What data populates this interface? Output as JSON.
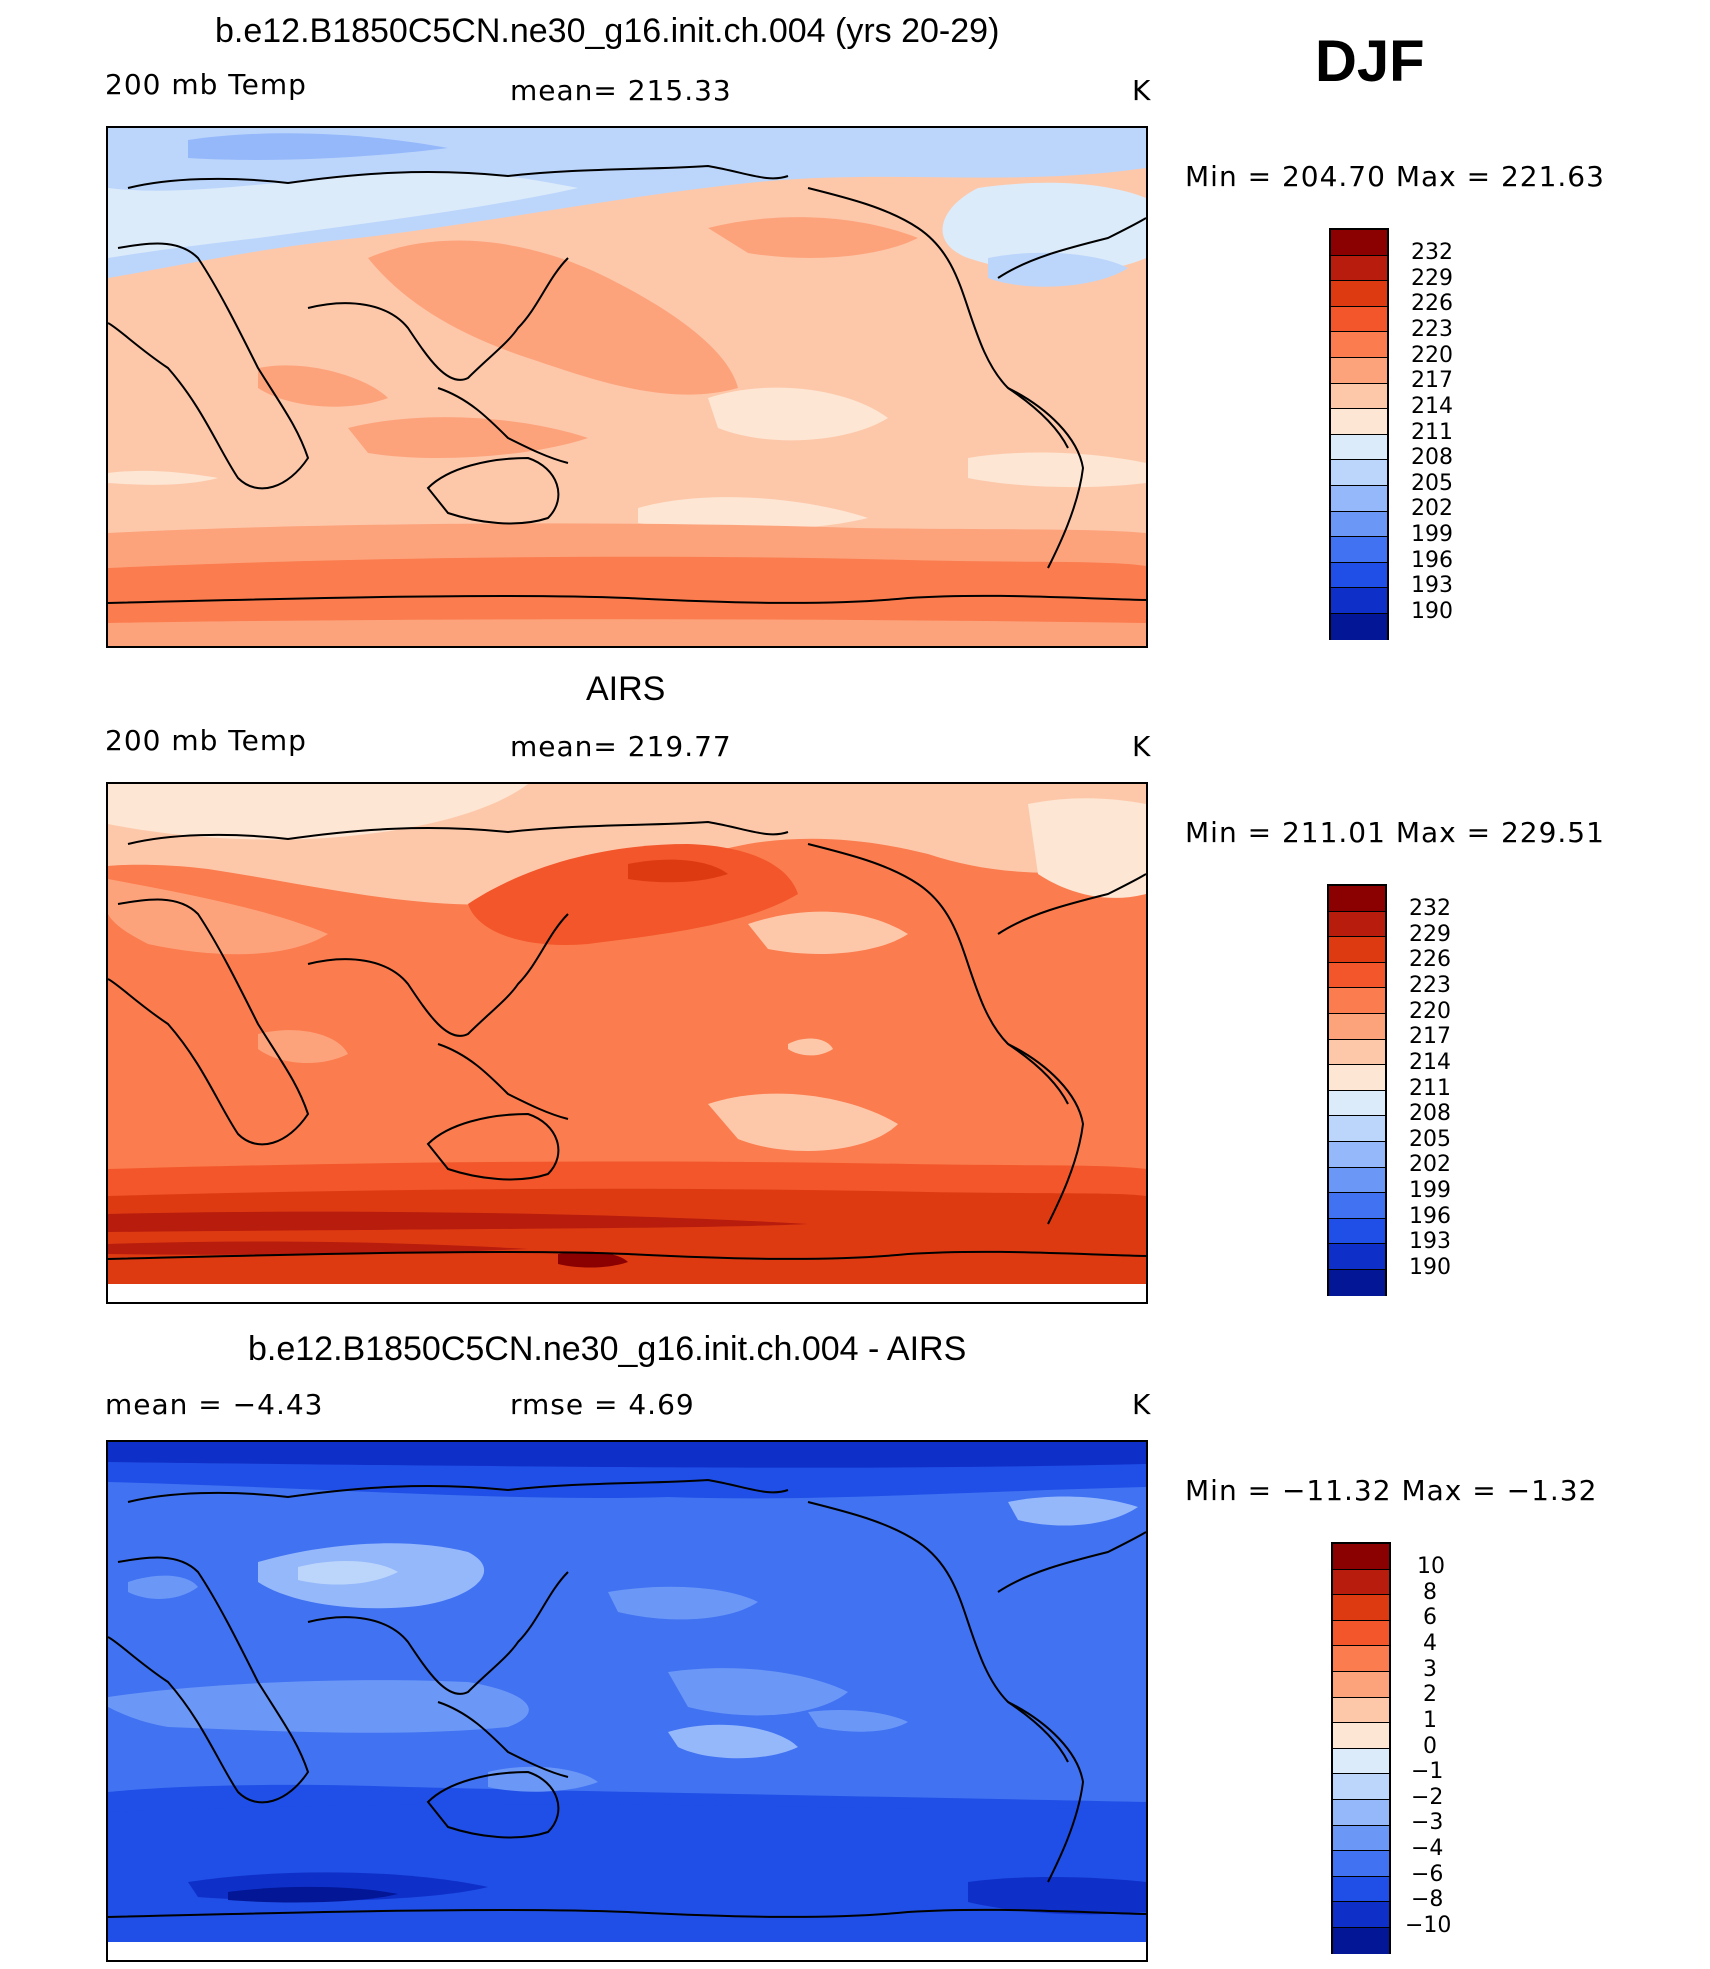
{
  "season": "DJF",
  "panels": [
    {
      "id": "model",
      "title": "b.e12.B1850C5CN.ne30_g16.init.ch.004 (yrs 20-29)",
      "left_label": "200 mb Temp",
      "center_label": "mean= 215.33",
      "units": "K",
      "minmax": "Min = 204.70 Max = 221.63",
      "colorbar": {
        "labels": [
          "232",
          "229",
          "226",
          "223",
          "220",
          "217",
          "214",
          "211",
          "208",
          "205",
          "202",
          "199",
          "196",
          "193",
          "190"
        ],
        "colors": [
          "#8b0000",
          "#b71c0c",
          "#de3a12",
          "#f2562a",
          "#fb7c4e",
          "#fda37c",
          "#fdc8aa",
          "#fde6d3",
          "#dcebfa",
          "#bcd6fb",
          "#95b8fb",
          "#6b97f7",
          "#4072f2",
          "#1f4fe6",
          "#0f2fc9",
          "#031796"
        ]
      },
      "base_color": "#fdc8aa"
    },
    {
      "id": "obs",
      "title": "AIRS",
      "left_label": "200 mb Temp",
      "center_label": "mean= 219.77",
      "units": "K",
      "minmax": "Min = 211.01 Max = 229.51",
      "colorbar": {
        "labels": [
          "232",
          "229",
          "226",
          "223",
          "220",
          "217",
          "214",
          "211",
          "208",
          "205",
          "202",
          "199",
          "196",
          "193",
          "190"
        ],
        "colors": [
          "#8b0000",
          "#b71c0c",
          "#de3a12",
          "#f2562a",
          "#fb7c4e",
          "#fda37c",
          "#fdc8aa",
          "#fde6d3",
          "#dcebfa",
          "#bcd6fb",
          "#95b8fb",
          "#6b97f7",
          "#4072f2",
          "#1f4fe6",
          "#0f2fc9",
          "#031796"
        ]
      },
      "base_color": "#fb7c4e"
    },
    {
      "id": "diff",
      "title": "b.e12.B1850C5CN.ne30_g16.init.ch.004 - AIRS",
      "left_label": "mean =  −4.43",
      "center_label": "rmse =   4.69",
      "units": "K",
      "minmax": "Min = −11.32 Max =  −1.32",
      "colorbar": {
        "labels": [
          "10",
          "8",
          "6",
          "4",
          "3",
          "2",
          "1",
          "0",
          "−1",
          "−2",
          "−3",
          "−4",
          "−6",
          "−8",
          "−10"
        ],
        "colors": [
          "#8b0000",
          "#b71c0c",
          "#de3a12",
          "#f2562a",
          "#fb7c4e",
          "#fda37c",
          "#fdc8aa",
          "#fde6d3",
          "#dcebfa",
          "#bcd6fb",
          "#95b8fb",
          "#6b97f7",
          "#4072f2",
          "#1f4fe6",
          "#0f2fc9",
          "#031796"
        ]
      },
      "base_color": "#1f4fe6"
    }
  ]
}
